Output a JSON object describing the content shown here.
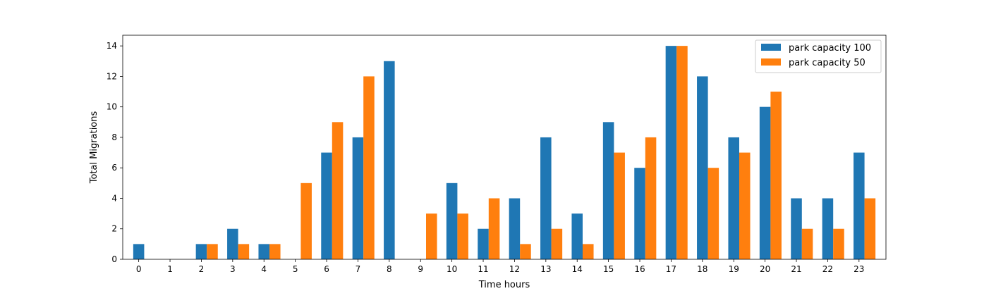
{
  "chart_data": {
    "type": "bar",
    "title": "",
    "xlabel": "Time hours",
    "ylabel": "Total Migrations",
    "categories": [
      "0",
      "1",
      "2",
      "3",
      "4",
      "5",
      "6",
      "7",
      "8",
      "9",
      "10",
      "11",
      "12",
      "13",
      "14",
      "15",
      "16",
      "17",
      "18",
      "19",
      "20",
      "21",
      "22",
      "23"
    ],
    "series": [
      {
        "name": "park capacity 100",
        "color": "#1f77b4",
        "values": [
          1,
          0,
          1,
          2,
          1,
          0,
          7,
          8,
          13,
          0,
          5,
          2,
          4,
          8,
          3,
          9,
          6,
          14,
          12,
          8,
          10,
          4,
          4,
          7
        ]
      },
      {
        "name": "park capacity 50",
        "color": "#ff7f0e",
        "values": [
          0,
          0,
          1,
          1,
          1,
          5,
          9,
          12,
          0,
          3,
          3,
          4,
          1,
          2,
          1,
          7,
          8,
          14,
          6,
          7,
          11,
          2,
          2,
          4
        ]
      }
    ],
    "ylim": [
      0,
      14.7
    ],
    "yticks": [
      0,
      2,
      4,
      6,
      8,
      10,
      12,
      14
    ],
    "grid": false,
    "legend_position": "top-right"
  }
}
